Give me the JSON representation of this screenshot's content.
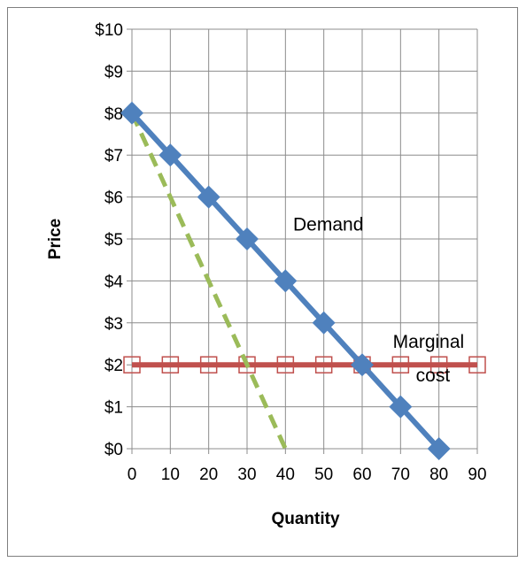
{
  "chart_data": {
    "type": "line",
    "xlabel": "Quantity",
    "ylabel": "Price",
    "xlim": [
      0,
      90
    ],
    "ylim": [
      0,
      10
    ],
    "x_ticks": [
      "0",
      "10",
      "20",
      "30",
      "40",
      "50",
      "60",
      "70",
      "80",
      "90"
    ],
    "y_ticks": [
      "$0",
      "$1",
      "$2",
      "$3",
      "$4",
      "$5",
      "$6",
      "$7",
      "$8",
      "$9",
      "$10"
    ],
    "grid": true,
    "series": [
      {
        "name": "Demand",
        "color": "#4f81bd",
        "marker": "diamond",
        "line_style": "solid",
        "points": [
          [
            0,
            8
          ],
          [
            10,
            7
          ],
          [
            20,
            6
          ],
          [
            30,
            5
          ],
          [
            40,
            4
          ],
          [
            50,
            3
          ],
          [
            60,
            2
          ],
          [
            70,
            1
          ],
          [
            80,
            0
          ]
        ]
      },
      {
        "name": "Marginal cost",
        "color": "#c0504d",
        "marker": "open-square",
        "line_style": "solid",
        "points": [
          [
            0,
            2
          ],
          [
            10,
            2
          ],
          [
            20,
            2
          ],
          [
            30,
            2
          ],
          [
            40,
            2
          ],
          [
            50,
            2
          ],
          [
            60,
            2
          ],
          [
            70,
            2
          ],
          [
            80,
            2
          ],
          [
            90,
            2
          ]
        ]
      },
      {
        "name": "",
        "color": "#9bbb59",
        "marker": "none",
        "line_style": "dashed",
        "points": [
          [
            0,
            8
          ],
          [
            40,
            0
          ]
        ]
      }
    ],
    "annotations": [
      {
        "text": "Demand",
        "x": 42,
        "y": 5.2
      },
      {
        "text": "Marginal",
        "x": 68,
        "y": 2.4
      },
      {
        "text": "cost",
        "x": 74,
        "y": 1.6
      }
    ]
  }
}
